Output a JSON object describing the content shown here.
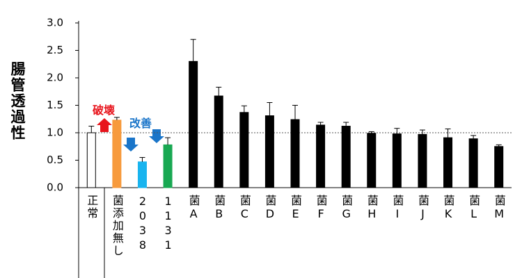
{
  "chart_data": {
    "type": "bar",
    "y_label": "腸管透過性",
    "categories": [
      "正常",
      "菌添加無し",
      "2038",
      "1131",
      "菌A",
      "菌B",
      "菌C",
      "菌D",
      "菌E",
      "菌F",
      "菌G",
      "菌H",
      "菌I",
      "菌J",
      "菌K",
      "菌L",
      "菌M"
    ],
    "values": [
      1.0,
      1.23,
      0.47,
      0.78,
      2.3,
      1.67,
      1.37,
      1.31,
      1.24,
      1.14,
      1.12,
      0.99,
      0.98,
      0.97,
      0.91,
      0.89,
      0.75
    ],
    "errors": [
      0.12,
      0.05,
      0.08,
      0.13,
      0.4,
      0.16,
      0.12,
      0.24,
      0.26,
      0.05,
      0.07,
      0.03,
      0.1,
      0.08,
      0.16,
      0.06,
      0.03
    ],
    "colors": [
      "#ffffff",
      "#f79a3c",
      "#19b4ef",
      "#18a852",
      "#000000",
      "#000000",
      "#000000",
      "#000000",
      "#000000",
      "#000000",
      "#000000",
      "#000000",
      "#000000",
      "#000000",
      "#000000",
      "#000000",
      "#000000"
    ],
    "ylim": [
      0,
      3
    ],
    "yticks": [
      {
        "value": 0,
        "label": "0.0"
      },
      {
        "value": 0.5,
        "label": "0.5"
      },
      {
        "value": 1,
        "label": "1.0"
      },
      {
        "value": 1.5,
        "label": "1.5"
      },
      {
        "value": 2,
        "label": "2.0"
      },
      {
        "value": 2.5,
        "label": "2.5"
      },
      {
        "value": 3,
        "label": "3.0"
      }
    ],
    "hline": 1,
    "annotations": [
      {
        "text": "破壊",
        "color": "#e8141c"
      },
      {
        "text": "改善",
        "color": "#1a75c9"
      }
    ]
  }
}
